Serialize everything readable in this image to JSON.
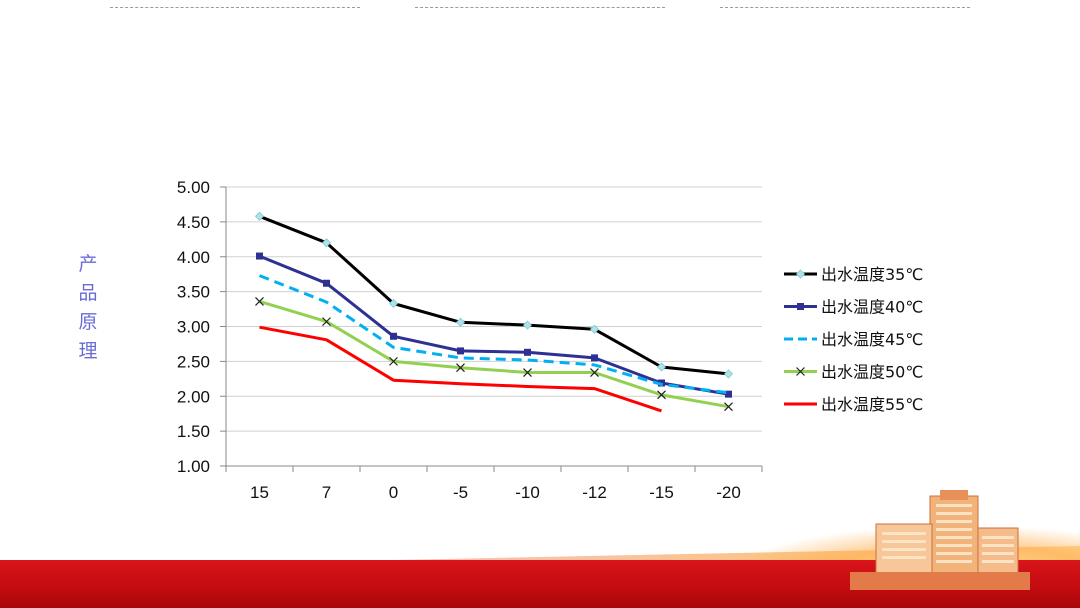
{
  "slide": {
    "side_title_chars": [
      "产",
      "品",
      "原",
      "理"
    ]
  },
  "colors": {
    "title": "#6b6bd6",
    "series": [
      "#000000",
      "#2e3192",
      "#00b0f0",
      "#92d050",
      "#ff0000"
    ],
    "grid": "#d0d0d0",
    "band": "#c20b10"
  },
  "chart_data": {
    "type": "line",
    "title": "",
    "xlabel": "",
    "ylabel": "",
    "categories": [
      "15",
      "7",
      "0",
      "-5",
      "-10",
      "-12",
      "-15",
      "-20"
    ],
    "ylim": [
      1.0,
      5.0
    ],
    "yticks": [
      "1.00",
      "1.50",
      "2.00",
      "2.50",
      "3.00",
      "3.50",
      "4.00",
      "4.50",
      "5.00"
    ],
    "grid": true,
    "legend_position": "right",
    "series": [
      {
        "name": "出水温度35℃",
        "values": [
          4.58,
          4.2,
          3.33,
          3.06,
          3.02,
          2.96,
          2.42,
          2.32
        ],
        "marker": "diamond",
        "dash": "solid"
      },
      {
        "name": "出水温度40℃",
        "values": [
          4.01,
          3.62,
          2.86,
          2.65,
          2.63,
          2.55,
          2.19,
          2.03
        ],
        "marker": "square",
        "dash": "solid"
      },
      {
        "name": "出水温度45℃",
        "values": [
          3.73,
          3.35,
          2.7,
          2.55,
          2.52,
          2.45,
          2.17,
          2.05
        ],
        "marker": "none",
        "dash": "dashed"
      },
      {
        "name": "出水温度50℃",
        "values": [
          3.36,
          3.07,
          2.5,
          2.41,
          2.34,
          2.34,
          2.02,
          1.85
        ],
        "marker": "x",
        "dash": "solid"
      },
      {
        "name": "出水温度55℃",
        "values": [
          2.99,
          2.81,
          2.23,
          2.18,
          2.14,
          2.11,
          1.79,
          null
        ],
        "marker": "none",
        "dash": "solid"
      }
    ]
  }
}
